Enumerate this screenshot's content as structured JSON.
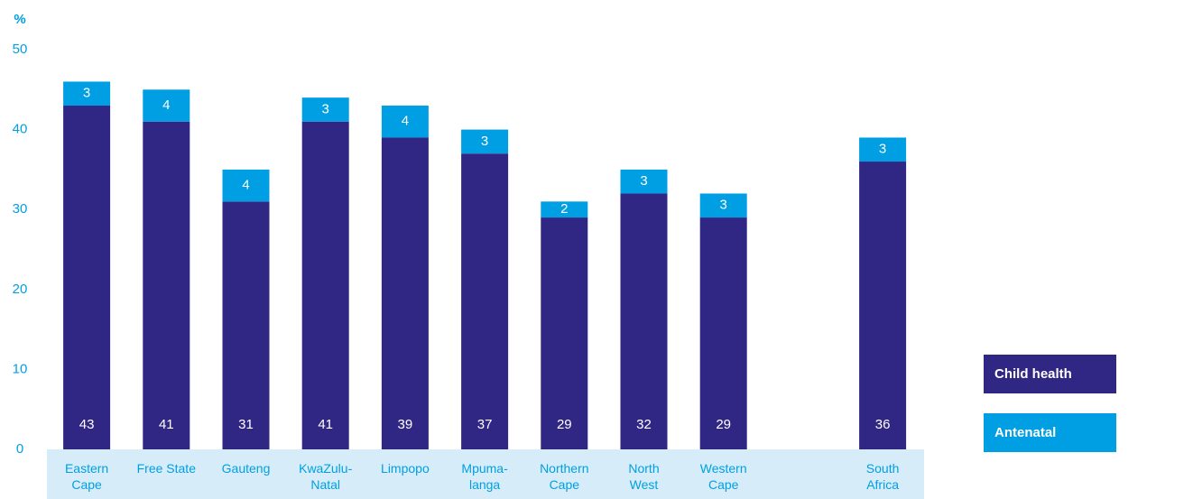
{
  "chart_data": {
    "type": "bar",
    "stacked": true,
    "y_label": "%",
    "categories": [
      "Eastern\nCape",
      "Free State",
      "Gauteng",
      "KwaZulu-\nNatal",
      "Limpopo",
      "Mpuma-\nlanga",
      "Northern\nCape",
      "North\nWest",
      "Western\nCape",
      null,
      "South\nAfrica"
    ],
    "series": [
      {
        "name": "Child health",
        "color": "#302683",
        "values": [
          43,
          41,
          31,
          41,
          39,
          37,
          29,
          32,
          29,
          null,
          36
        ]
      },
      {
        "name": "Antenatal",
        "color": "#009fe3",
        "values": [
          3,
          4,
          4,
          3,
          4,
          3,
          2,
          3,
          3,
          null,
          3
        ]
      }
    ],
    "ylim": [
      0,
      50
    ],
    "yticks": [
      0,
      10,
      20,
      30,
      40,
      50
    ],
    "grid": false
  }
}
